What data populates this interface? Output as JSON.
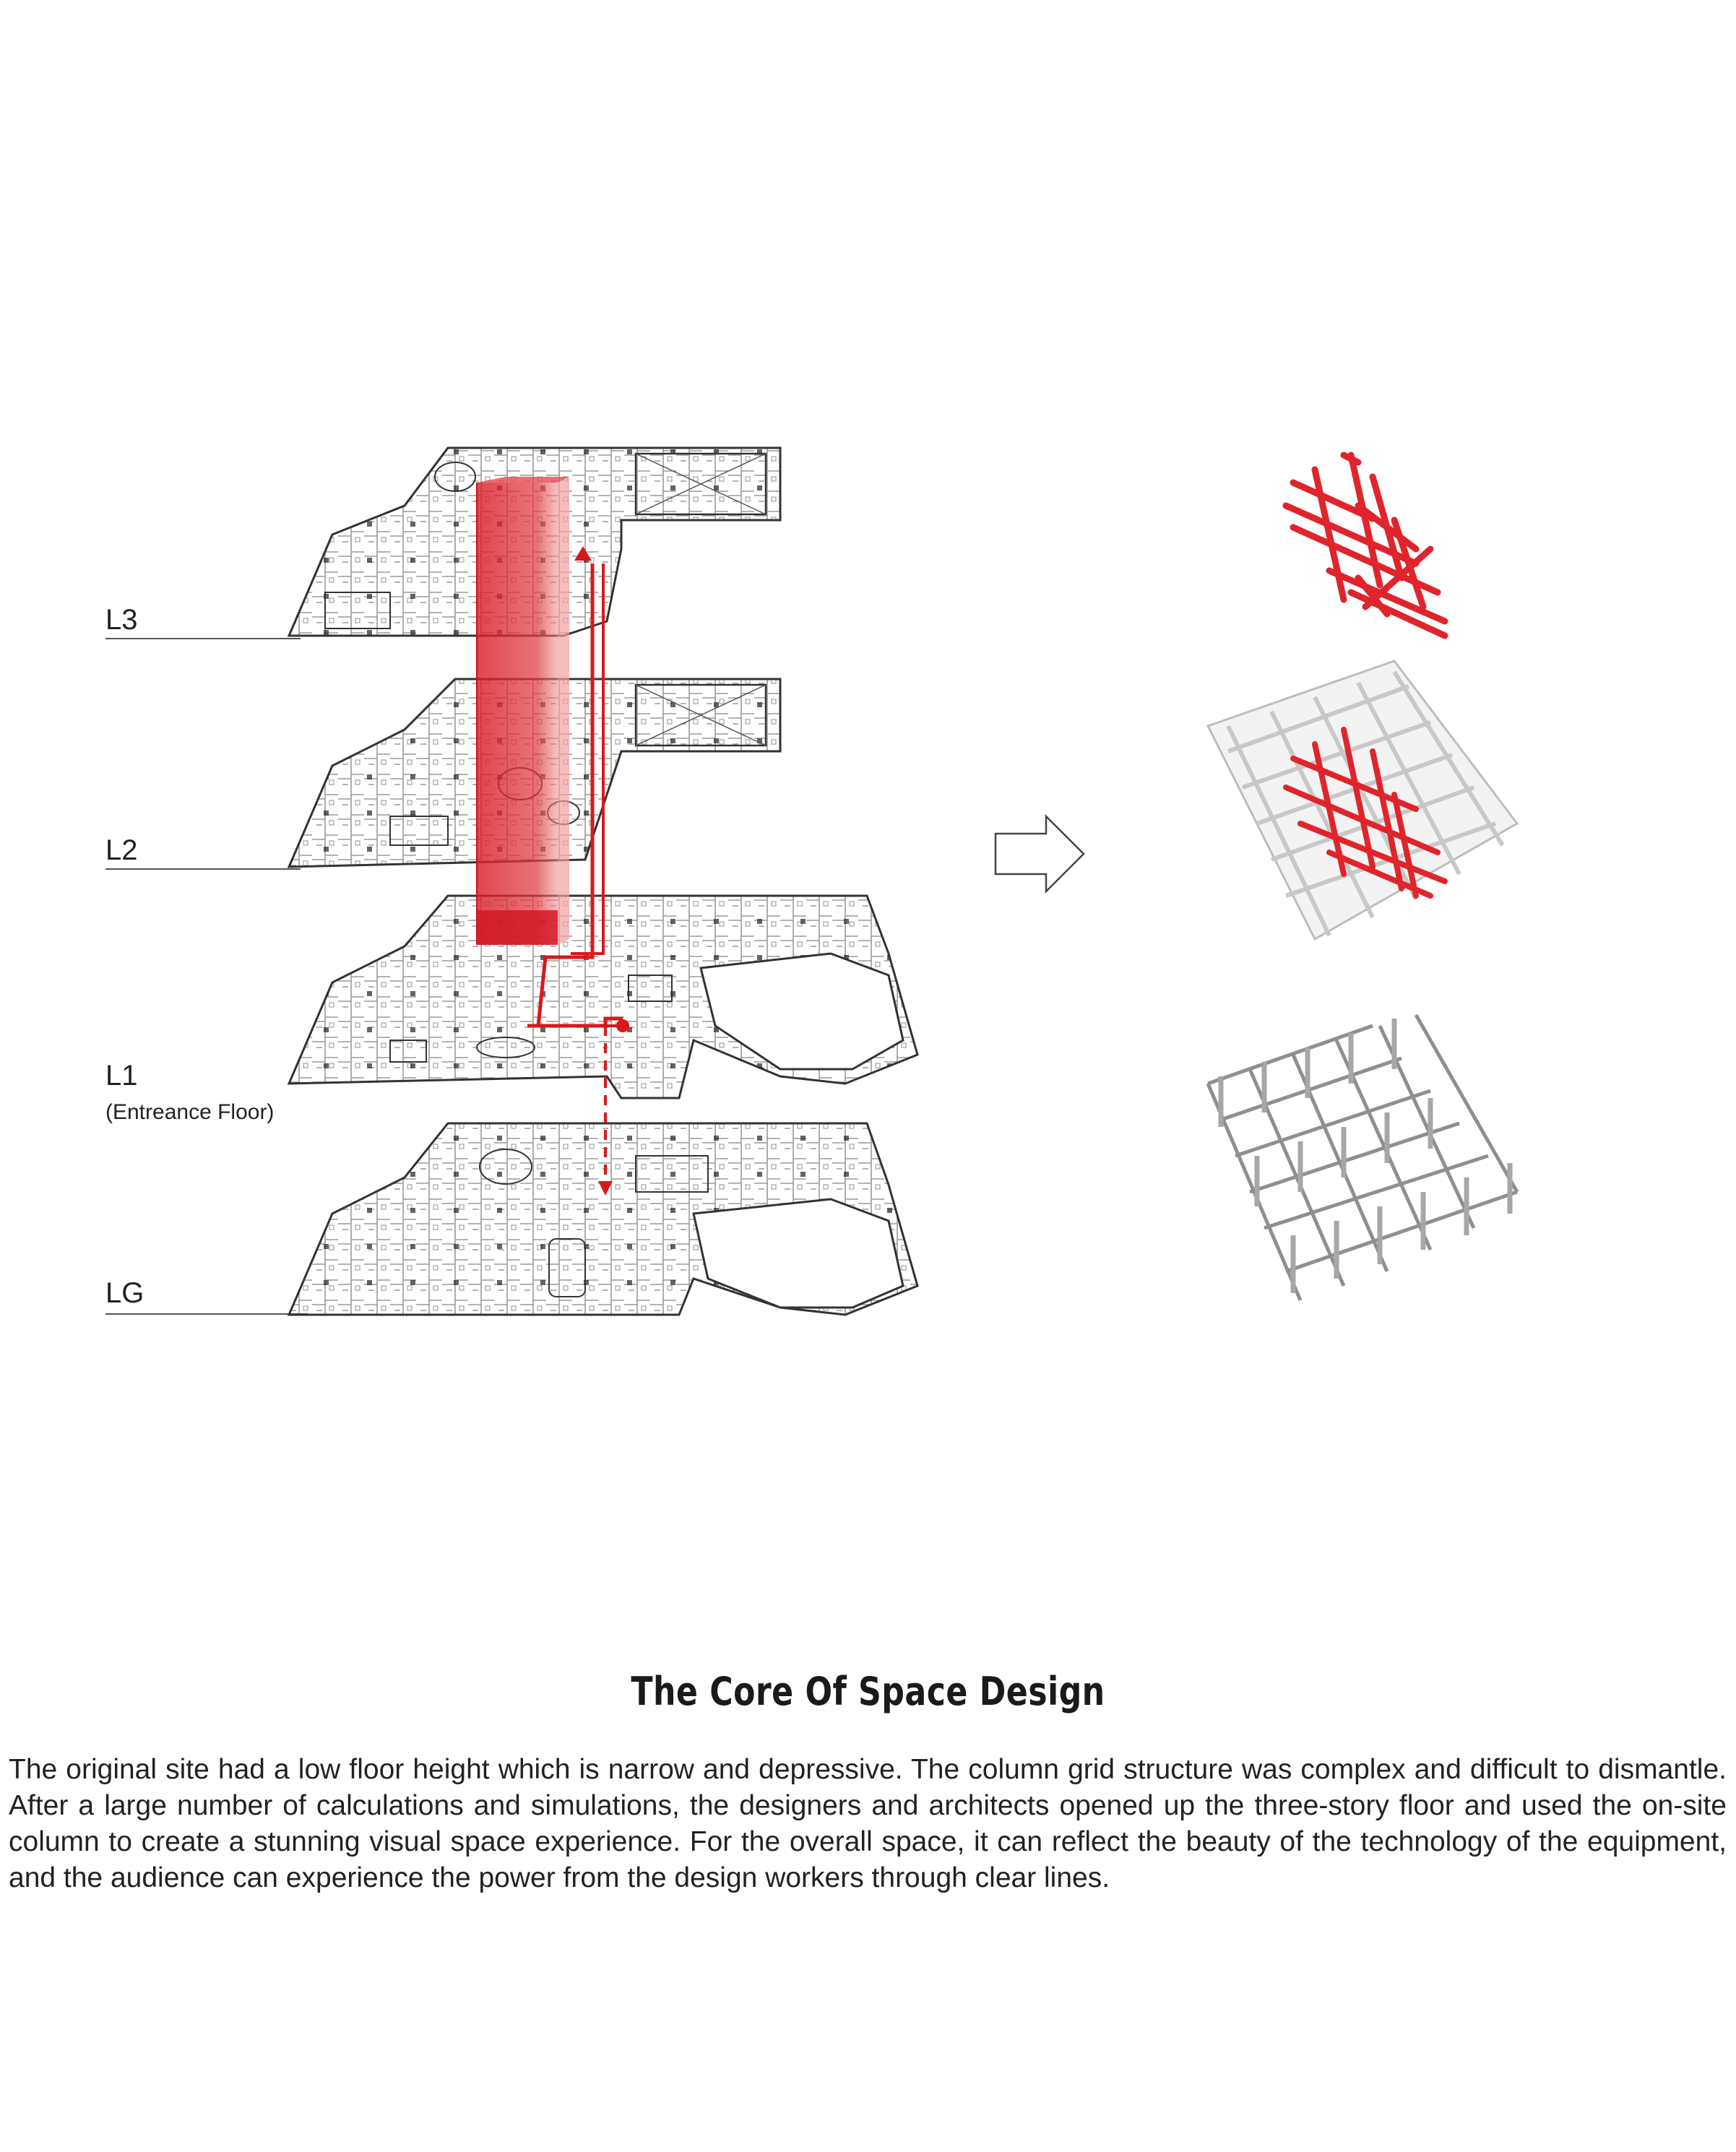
{
  "floors": [
    {
      "id": "L3",
      "label": "L3",
      "sublabel": ""
    },
    {
      "id": "L2",
      "label": "L2",
      "sublabel": ""
    },
    {
      "id": "L1",
      "label": "L1",
      "sublabel": "(Entreance Floor)"
    },
    {
      "id": "LG",
      "label": "LG",
      "sublabel": ""
    }
  ],
  "colors": {
    "accent_red": "#d7191c",
    "column_red_fill": "#e0242b",
    "plan_line": "#3a3a3a",
    "structure_grey": "#9a9a9a"
  },
  "icons": {
    "arrow": "arrow-right-outline-icon",
    "grid_red": "red-column-grid-icon",
    "grid_combined": "combined-structure-icon",
    "grid_grey": "grey-column-grid-icon"
  },
  "article": {
    "title": "The Core Of Space Design",
    "body": "The original site had a low floor height which is narrow and depressive. The column grid structure was complex and difficult to dismantle. After a large number of calculations and simulations, the designers and architects opened up the three-story floor and used the on-site column to create a stunning visual space experience. For the overall space, it can reflect the beauty of the technology of the equipment, and the audience can experience the power from the design workers through clear lines."
  }
}
